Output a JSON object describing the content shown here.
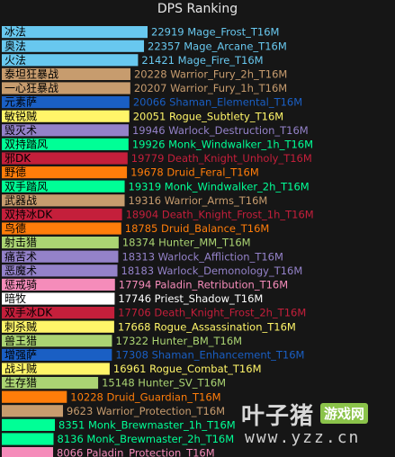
{
  "chart_data": {
    "type": "bar",
    "orientation": "horizontal",
    "title": "DPS Ranking",
    "xlim": [
      0,
      22919
    ],
    "grid": false,
    "legend": "none",
    "bars": [
      {
        "name": "冰法",
        "value": 22919,
        "spec": "Mage_Frost_T16M",
        "color": "#68c8ef"
      },
      {
        "name": "奥法",
        "value": 22357,
        "spec": "Mage_Arcane_T16M",
        "color": "#68c8ef"
      },
      {
        "name": "火法",
        "value": 21421,
        "spec": "Mage_Fire_T16M",
        "color": "#68c8ef"
      },
      {
        "name": "泰坦狂暴战",
        "value": 20228,
        "spec": "Warrior_Fury_2h_T16M",
        "color": "#c79c6e"
      },
      {
        "name": "一心狂暴战",
        "value": 20207,
        "spec": "Warrior_Fury_1h_T16M",
        "color": "#c79c6e"
      },
      {
        "name": "元素萨",
        "value": 20066,
        "spec": "Shaman_Elemental_T16M",
        "color": "#1a5fc4"
      },
      {
        "name": "敏锐贼",
        "value": 20051,
        "spec": "Rogue_Subtlety_T16M",
        "color": "#fff569"
      },
      {
        "name": "毁灭术",
        "value": 19946,
        "spec": "Warlock_Destruction_T16M",
        "color": "#9482c9"
      },
      {
        "name": "双持踏风",
        "value": 19926,
        "spec": "Monk_Windwalker_1h_T16M",
        "color": "#00ff96"
      },
      {
        "name": "邪DK",
        "value": 19779,
        "spec": "Death_Knight_Unholy_T16M",
        "color": "#c41f3b"
      },
      {
        "name": "野德",
        "value": 19678,
        "spec": "Druid_Feral_T16M",
        "color": "#ff7d0a"
      },
      {
        "name": "双手踏风",
        "value": 19319,
        "spec": "Monk_Windwalker_2h_T16M",
        "color": "#00ff96"
      },
      {
        "name": "武器战",
        "value": 19316,
        "spec": "Warrior_Arms_T16M",
        "color": "#c79c6e"
      },
      {
        "name": "双持冰DK",
        "value": 18904,
        "spec": "Death_Knight_Frost_1h_T16M",
        "color": "#c41f3b"
      },
      {
        "name": "鸟德",
        "value": 18785,
        "spec": "Druid_Balance_T16M",
        "color": "#ff7d0a"
      },
      {
        "name": "射击猎",
        "value": 18374,
        "spec": "Hunter_MM_T16M",
        "color": "#abd473"
      },
      {
        "name": "痛苦术",
        "value": 18313,
        "spec": "Warlock_Affliction_T16M",
        "color": "#9482c9"
      },
      {
        "name": "恶魔术",
        "value": 18183,
        "spec": "Warlock_Demonology_T16M",
        "color": "#9482c9"
      },
      {
        "name": "惩戒骑",
        "value": 17794,
        "spec": "Paladin_Retribution_T16M",
        "color": "#f58cba"
      },
      {
        "name": "暗牧",
        "value": 17746,
        "spec": "Priest_Shadow_T16M",
        "color": "#ffffff"
      },
      {
        "name": "双手冰DK",
        "value": 17706,
        "spec": "Death_Knight_Frost_2h_T16M",
        "color": "#c41f3b"
      },
      {
        "name": "刺杀贼",
        "value": 17668,
        "spec": "Rogue_Assassination_T16M",
        "color": "#fff569"
      },
      {
        "name": "兽王猎",
        "value": 17322,
        "spec": "Hunter_BM_T16M",
        "color": "#abd473"
      },
      {
        "name": "增强萨",
        "value": 17308,
        "spec": "Shaman_Enhancement_T16M",
        "color": "#1a5fc4"
      },
      {
        "name": "战斗贼",
        "value": 16961,
        "spec": "Rogue_Combat_T16M",
        "color": "#fff569"
      },
      {
        "name": "生存猎",
        "value": 15148,
        "spec": "Hunter_SV_T16M",
        "color": "#abd473"
      },
      {
        "name": "",
        "value": 10228,
        "spec": "Druid_Guardian_T16M",
        "color": "#ff7d0a"
      },
      {
        "name": "",
        "value": 9623,
        "spec": "Warrior_Protection_T16M",
        "color": "#c79c6e"
      },
      {
        "name": "",
        "value": 8351,
        "spec": "Monk_Brewmaster_1h_T16M",
        "color": "#00ff96"
      },
      {
        "name": "",
        "value": 8136,
        "spec": "Monk_Brewmaster_2h_T16M",
        "color": "#00ff96"
      },
      {
        "name": "",
        "value": 8066,
        "spec": "Paladin_Protection_T16M",
        "color": "#f58cba"
      }
    ]
  },
  "watermark": {
    "brand": "叶子猪",
    "badge": "游戏网",
    "url": "www.yzz.cn"
  }
}
